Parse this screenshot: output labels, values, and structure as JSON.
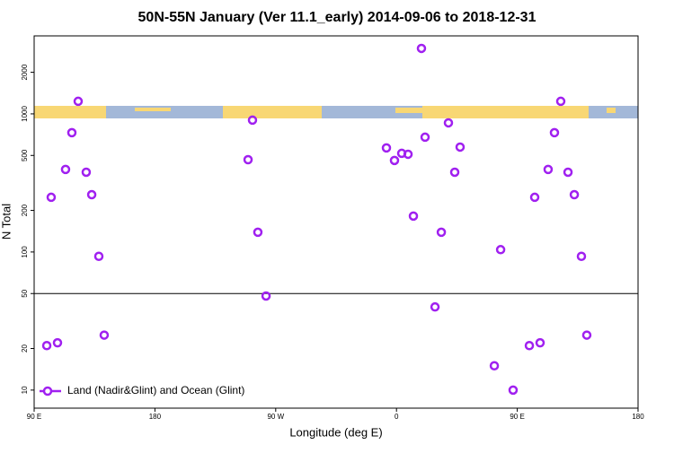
{
  "chart_data": {
    "type": "scatter",
    "title": "50N-55N January (Ver 11.1_early)   2014-09-06 to 2018-12-31",
    "x_label": "Longitude (deg E)",
    "y_label": "N Total",
    "xlim": [
      90,
      540
    ],
    "xticks": [
      {
        "value": 90,
        "label": "90 E"
      },
      180,
      {
        "value": 270,
        "label": "90 W"
      },
      {
        "value": 360,
        "label": "0"
      },
      {
        "value": 450,
        "label": "90 E"
      },
      {
        "value": 540,
        "label": "180"
      }
    ],
    "ylim": [
      7.4,
      3670
    ],
    "ylog": true,
    "yticks": [
      10,
      20,
      50,
      100,
      200,
      500,
      1000,
      2000
    ],
    "hline": 50,
    "legend": "bottom-left",
    "series": [
      {
        "name": "Land (Nadir&Glint) and Ocean (Glint)",
        "color": "#a020f0",
        "x": [
          99.4,
          102.7,
          107.4,
          113.4,
          118.1,
          122.8,
          128.8,
          132.9,
          138.2,
          142.2,
          249.4,
          252.7,
          256.7,
          262.8,
          352.5,
          358.5,
          363.9,
          368.6,
          372.6,
          378.6,
          381.3,
          388.7,
          393.4,
          398.7,
          403.4,
          407.4,
          432.9,
          437.6,
          446.9,
          459.0,
          463.0,
          467.0,
          473.0,
          477.7,
          482.4,
          487.8,
          492.5,
          497.8,
          501.8
        ],
        "values": [
          21,
          249,
          22,
          396,
          731,
          1233,
          378,
          260,
          93,
          25,
          466,
          901,
          139,
          48,
          567,
          460,
          518,
          510,
          182,
          2979,
          678,
          40,
          139,
          861,
          378,
          575,
          15,
          104,
          10,
          21,
          249,
          22,
          396,
          731,
          1233,
          378,
          260,
          93,
          25
        ]
      }
    ]
  }
}
